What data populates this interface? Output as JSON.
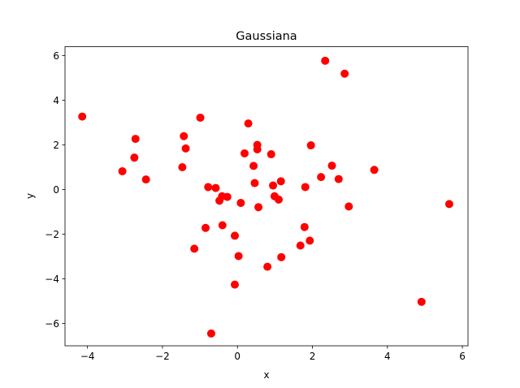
{
  "chart_data": {
    "type": "scatter",
    "title": "Gaussiana",
    "xlabel": "x",
    "ylabel": "y",
    "xlim": [
      -4.6,
      6.15
    ],
    "ylim": [
      -7.0,
      6.4
    ],
    "xticks": [
      -4,
      -2,
      0,
      2,
      4,
      6
    ],
    "yticks": [
      -6,
      -4,
      -2,
      0,
      2,
      4,
      6
    ],
    "xtick_labels": [
      "−4",
      "−2",
      "0",
      "2",
      "4",
      "6"
    ],
    "ytick_labels": [
      "−6",
      "−4",
      "−2",
      "0",
      "2",
      "4",
      "6"
    ],
    "grid": false,
    "marker_color": "#ff0000",
    "points": [
      {
        "x": -4.14,
        "y": 3.27
      },
      {
        "x": -3.07,
        "y": 0.82
      },
      {
        "x": -2.72,
        "y": 2.27
      },
      {
        "x": -2.75,
        "y": 1.43
      },
      {
        "x": -2.44,
        "y": 0.45
      },
      {
        "x": -1.43,
        "y": 2.39
      },
      {
        "x": -1.38,
        "y": 1.84
      },
      {
        "x": -1.47,
        "y": 1.0
      },
      {
        "x": -0.99,
        "y": 3.22
      },
      {
        "x": -0.78,
        "y": 0.11
      },
      {
        "x": -0.58,
        "y": 0.07
      },
      {
        "x": -0.48,
        "y": -0.5
      },
      {
        "x": -0.41,
        "y": -0.3
      },
      {
        "x": -0.27,
        "y": -0.33
      },
      {
        "x": -0.85,
        "y": -1.72
      },
      {
        "x": -0.4,
        "y": -1.6
      },
      {
        "x": -1.15,
        "y": -2.65
      },
      {
        "x": -0.07,
        "y": -2.07
      },
      {
        "x": 0.03,
        "y": -2.98
      },
      {
        "x": -0.07,
        "y": -4.26
      },
      {
        "x": -0.7,
        "y": -6.45
      },
      {
        "x": 0.09,
        "y": -0.6
      },
      {
        "x": 0.19,
        "y": 1.62
      },
      {
        "x": 0.29,
        "y": 2.96
      },
      {
        "x": 0.43,
        "y": 1.06
      },
      {
        "x": 0.46,
        "y": 0.29
      },
      {
        "x": 0.53,
        "y": 2.0
      },
      {
        "x": 0.53,
        "y": 1.8
      },
      {
        "x": 0.56,
        "y": -0.79
      },
      {
        "x": 0.8,
        "y": -3.46
      },
      {
        "x": 0.9,
        "y": 1.58
      },
      {
        "x": 0.95,
        "y": 0.18
      },
      {
        "x": 0.99,
        "y": -0.3
      },
      {
        "x": 1.1,
        "y": -0.45
      },
      {
        "x": 1.16,
        "y": 0.37
      },
      {
        "x": 1.17,
        "y": -3.03
      },
      {
        "x": 1.68,
        "y": -2.51
      },
      {
        "x": 1.79,
        "y": -1.68
      },
      {
        "x": 1.81,
        "y": 0.11
      },
      {
        "x": 1.93,
        "y": -2.29
      },
      {
        "x": 1.96,
        "y": 1.98
      },
      {
        "x": 2.23,
        "y": 0.56
      },
      {
        "x": 2.34,
        "y": 5.77
      },
      {
        "x": 2.52,
        "y": 1.07
      },
      {
        "x": 2.7,
        "y": 0.47
      },
      {
        "x": 2.86,
        "y": 5.19
      },
      {
        "x": 2.97,
        "y": -0.76
      },
      {
        "x": 3.65,
        "y": 0.88
      },
      {
        "x": 4.91,
        "y": -5.03
      },
      {
        "x": 5.65,
        "y": -0.65
      }
    ]
  }
}
